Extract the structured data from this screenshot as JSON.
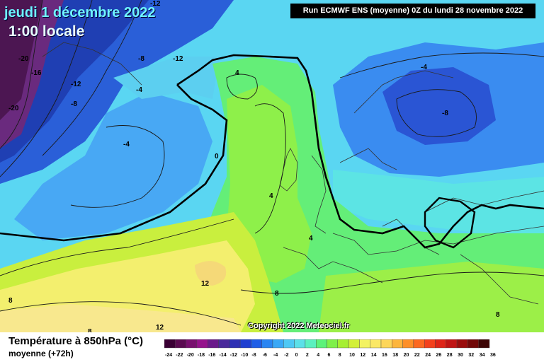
{
  "header": {
    "date": "jeudi 1 décembre 2022",
    "time": "1:00 locale",
    "run": "Run ECMWF ENS (moyenne) 0Z du lundi 28 novembre 2022"
  },
  "copyright": "Copyright 2022 Meteociel.fr",
  "footer": {
    "title": "Température à 850hPa (°C)",
    "subtitle": "moyenne   (+72h)"
  },
  "legend": {
    "labels": [
      "-24",
      "-22",
      "-20",
      "-18",
      "-16",
      "-14",
      "-12",
      "-10",
      "-8",
      "-6",
      "-4",
      "-2",
      "0",
      "2",
      "4",
      "6",
      "8",
      "10",
      "12",
      "14",
      "16",
      "18",
      "20",
      "22",
      "24",
      "26",
      "28",
      "30",
      "32",
      "34",
      "36"
    ],
    "colors": [
      "#3a0034",
      "#5a0a50",
      "#780f6e",
      "#95128c",
      "#6a1a8a",
      "#4a2a9a",
      "#2d2fb3",
      "#1f3fd0",
      "#1f5ee6",
      "#2a85f2",
      "#3aa8f6",
      "#4ec8f4",
      "#5ce0e8",
      "#5bf0bf",
      "#5cf27a",
      "#7ef04a",
      "#a6ef32",
      "#d3f038",
      "#f3f262",
      "#fbe866",
      "#fdd65a",
      "#fdb53c",
      "#fd8f28",
      "#fc6820",
      "#f3401c",
      "#de2418",
      "#c01414",
      "#9a0c0c",
      "#720808",
      "#3c0404"
    ]
  },
  "map": {
    "colors": {
      "deep_purple": "#5a1c64",
      "purple": "#7a2a8a",
      "dark_blue": "#1e3fb8",
      "blue": "#2a62dc",
      "mid_blue": "#3a8ef0",
      "light_blue": "#5bb8f8",
      "cyan": "#5cd6ee",
      "aqua": "#5cecd2",
      "green": "#62ee7a",
      "lime": "#8ef04a",
      "yellow_green": "#c8ef3c",
      "yellow": "#f4f070",
      "pale_yellow": "#f8e98a",
      "orange_yellow": "#f6d970"
    },
    "contour_labels": [
      "-12",
      "-8",
      "-12",
      "-20",
      "-16",
      "-12",
      "-8",
      "-20",
      "-4",
      "-4",
      "-4",
      "-8",
      "4",
      "0",
      "4",
      "4",
      "8",
      "8",
      "12",
      "8",
      "12",
      "8"
    ]
  }
}
